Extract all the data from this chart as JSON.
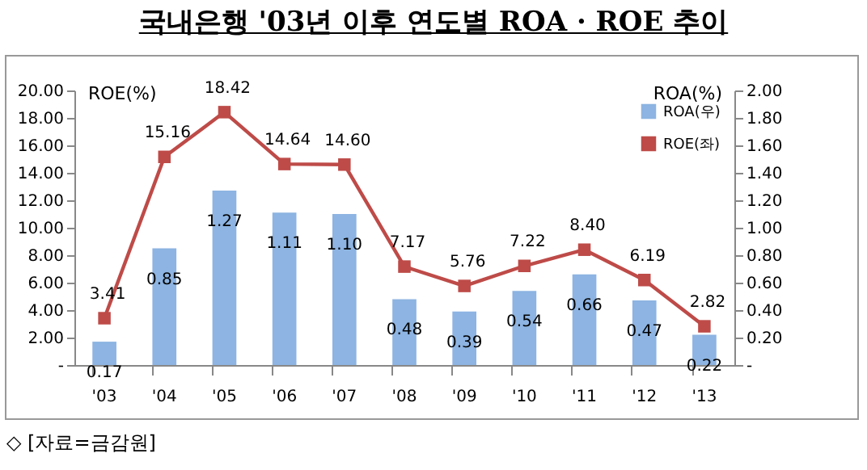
{
  "chart_data": {
    "type": "bar",
    "title": "국내은행 '03년 이후 연도별 ROA · ROE 추이",
    "ylabel": "ROE(%)",
    "y2label": "ROA(%)",
    "categories": [
      "'03",
      "'04",
      "'05",
      "'06",
      "'07",
      "'08",
      "'09",
      "'10",
      "'11",
      "'12",
      "'13"
    ],
    "series": [
      {
        "name": "ROA(우)",
        "axis": "y2",
        "color": "#8db4e2",
        "values": [
          0.17,
          0.85,
          1.27,
          1.11,
          1.1,
          0.48,
          0.39,
          0.54,
          0.66,
          0.47,
          0.22
        ],
        "value_labels": [
          "0.17",
          "0.85",
          "1.27",
          "1.11",
          "1.10",
          "0.48",
          "0.39",
          "0.54",
          "0.66",
          "0.47",
          "0.22"
        ]
      },
      {
        "name": "ROE(좌)",
        "type": "line",
        "color": "#be4b48",
        "marker": "square",
        "line_style": "solid",
        "values": [
          3.41,
          15.16,
          18.42,
          14.64,
          14.6,
          7.17,
          5.76,
          7.22,
          8.4,
          6.19,
          2.82
        ],
        "value_labels": [
          "3.41",
          "15.16",
          "18.42",
          "14.64",
          "14.60",
          "7.17",
          "5.76",
          "7.22",
          "8.40",
          "6.19",
          "2.82"
        ]
      }
    ],
    "ylim": [
      0,
      20
    ],
    "yticks": [
      {
        "value": 0,
        "label": "-"
      },
      {
        "value": 2,
        "label": "2.00"
      },
      {
        "value": 4,
        "label": "4.00"
      },
      {
        "value": 6,
        "label": "6.00"
      },
      {
        "value": 8,
        "label": "8.00"
      },
      {
        "value": 10,
        "label": "10.00"
      },
      {
        "value": 12,
        "label": "12.00"
      },
      {
        "value": 14,
        "label": "14.00"
      },
      {
        "value": 16,
        "label": "16.00"
      },
      {
        "value": 18,
        "label": "18.00"
      },
      {
        "value": 20,
        "label": "20.00"
      }
    ],
    "y2lim": [
      0,
      2
    ],
    "y2ticks": [
      {
        "value": 0,
        "label": "-"
      },
      {
        "value": 0.2,
        "label": "0.20"
      },
      {
        "value": 0.4,
        "label": "0.40"
      },
      {
        "value": 0.6,
        "label": "0.60"
      },
      {
        "value": 0.8,
        "label": "0.80"
      },
      {
        "value": 1,
        "label": "1.00"
      },
      {
        "value": 1.2,
        "label": "1.20"
      },
      {
        "value": 1.4,
        "label": "1.40"
      },
      {
        "value": 1.6,
        "label": "1.60"
      },
      {
        "value": 1.8,
        "label": "1.80"
      },
      {
        "value": 2,
        "label": "2.00"
      }
    ],
    "grid": false,
    "legend": "top right",
    "annotations": [
      "◇ [자료=금감원]"
    ]
  }
}
